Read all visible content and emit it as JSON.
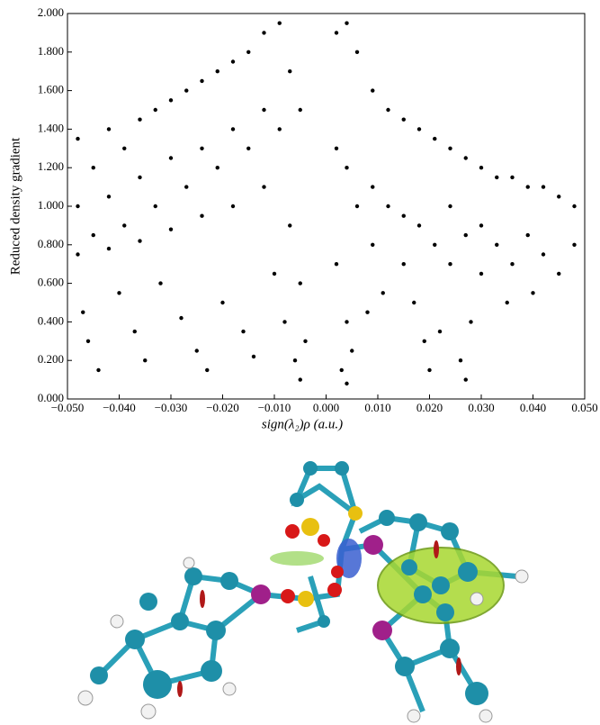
{
  "chart_data": {
    "type": "scatter",
    "xlabel": "sign(λ₂)ρ (a.u.)",
    "ylabel": "Reduced density gradient",
    "xlim": [
      -0.05,
      0.05
    ],
    "ylim": [
      0,
      2
    ],
    "xticks": [
      {
        "value": -0.05,
        "label": "−0.050"
      },
      {
        "value": -0.04,
        "label": "−0.040"
      },
      {
        "value": -0.03,
        "label": "−0.030"
      },
      {
        "value": -0.02,
        "label": "−0.020"
      },
      {
        "value": -0.01,
        "label": "−0.010"
      },
      {
        "value": 0,
        "label": "0.000"
      },
      {
        "value": 0.01,
        "label": "0.010"
      },
      {
        "value": 0.02,
        "label": "0.020"
      },
      {
        "value": 0.03,
        "label": "0.030"
      },
      {
        "value": 0.04,
        "label": "0.040"
      },
      {
        "value": 0.05,
        "label": "0.050"
      }
    ],
    "yticks": [
      {
        "value": 0,
        "label": "0.000"
      },
      {
        "value": 0.2,
        "label": "0.200"
      },
      {
        "value": 0.4,
        "label": "0.400"
      },
      {
        "value": 0.6,
        "label": "0.600"
      },
      {
        "value": 0.8,
        "label": "0.800"
      },
      {
        "value": 1,
        "label": "1.000"
      },
      {
        "value": 1.2,
        "label": "1.200"
      },
      {
        "value": 1.4,
        "label": "1.400"
      },
      {
        "value": 1.6,
        "label": "1.600"
      },
      {
        "value": 1.8,
        "label": "1.800"
      },
      {
        "value": 2,
        "label": "2.000"
      }
    ],
    "color": "#000000",
    "x": [
      -0.048,
      -0.048,
      -0.048,
      -0.045,
      -0.045,
      -0.042,
      -0.042,
      -0.042,
      -0.039,
      -0.039,
      -0.036,
      -0.036,
      -0.036,
      -0.033,
      -0.033,
      -0.03,
      -0.03,
      -0.03,
      -0.027,
      -0.027,
      -0.024,
      -0.024,
      -0.024,
      -0.021,
      -0.021,
      -0.018,
      -0.018,
      -0.018,
      -0.015,
      -0.015,
      -0.012,
      -0.012,
      -0.012,
      -0.009,
      -0.009,
      -0.007,
      -0.007,
      -0.005,
      -0.005,
      -0.047,
      -0.046,
      -0.044,
      -0.04,
      -0.037,
      -0.035,
      -0.032,
      -0.028,
      -0.025,
      -0.023,
      -0.02,
      -0.016,
      -0.014,
      -0.01,
      -0.008,
      -0.006,
      -0.005,
      -0.004,
      0.002,
      0.002,
      0.002,
      0.004,
      0.004,
      0.004,
      0.006,
      0.006,
      0.009,
      0.009,
      0.009,
      0.012,
      0.012,
      0.015,
      0.015,
      0.015,
      0.018,
      0.018,
      0.021,
      0.021,
      0.024,
      0.024,
      0.024,
      0.027,
      0.027,
      0.03,
      0.03,
      0.03,
      0.033,
      0.033,
      0.036,
      0.036,
      0.039,
      0.039,
      0.042,
      0.042,
      0.045,
      0.045,
      0.048,
      0.048,
      0.003,
      0.004,
      0.005,
      0.008,
      0.011,
      0.017,
      0.019,
      0.02,
      0.022,
      0.026,
      0.027,
      0.028,
      0.035,
      0.04
    ],
    "y": [
      1.35,
      1.0,
      0.75,
      1.2,
      0.85,
      1.4,
      1.05,
      0.78,
      1.3,
      0.9,
      1.45,
      1.15,
      0.82,
      1.5,
      1.0,
      1.55,
      1.25,
      0.88,
      1.6,
      1.1,
      1.65,
      1.3,
      0.95,
      1.7,
      1.2,
      1.75,
      1.4,
      1.0,
      1.8,
      1.3,
      1.9,
      1.5,
      1.1,
      1.95,
      1.4,
      1.7,
      0.9,
      1.5,
      0.6,
      0.45,
      0.3,
      0.15,
      0.55,
      0.35,
      0.2,
      0.6,
      0.42,
      0.25,
      0.15,
      0.5,
      0.35,
      0.22,
      0.65,
      0.4,
      0.2,
      0.1,
      0.3,
      1.9,
      1.3,
      0.7,
      1.95,
      1.2,
      0.4,
      1.8,
      1.0,
      1.6,
      1.1,
      0.8,
      1.5,
      1.0,
      1.45,
      0.95,
      0.7,
      1.4,
      0.9,
      1.35,
      0.8,
      1.3,
      1.0,
      0.7,
      1.25,
      0.85,
      1.2,
      0.9,
      0.65,
      1.15,
      0.8,
      1.15,
      0.7,
      1.1,
      0.85,
      1.1,
      0.75,
      1.05,
      0.65,
      1.0,
      0.8,
      0.15,
      0.08,
      0.25,
      0.45,
      0.55,
      0.5,
      0.3,
      0.15,
      0.35,
      0.2,
      0.1,
      0.4,
      0.5,
      0.55
    ]
  }
}
